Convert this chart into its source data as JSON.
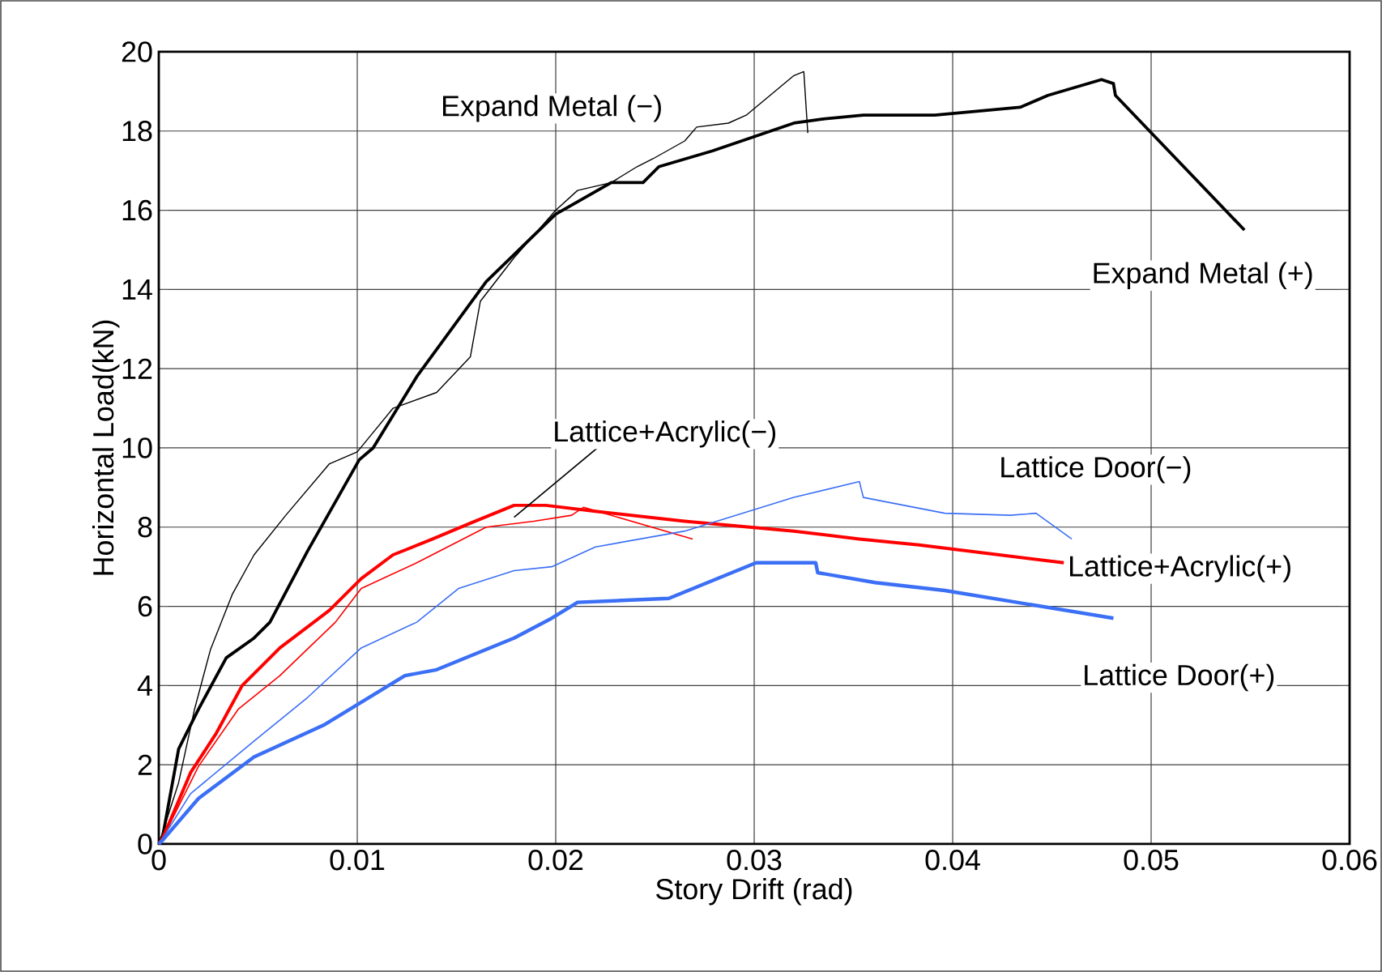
{
  "chart_data": {
    "type": "line",
    "xlabel": "Story Drift (rad)",
    "ylabel": "Horizontal Load(kN)",
    "xlim": [
      0,
      0.06
    ],
    "xticks": [
      0,
      0.01,
      0.02,
      0.03,
      0.04,
      0.05,
      0.06
    ],
    "ylim": [
      0,
      20
    ],
    "yticks": [
      0,
      2,
      4,
      6,
      8,
      10,
      12,
      14,
      16,
      18,
      20
    ],
    "grid": true,
    "marker": "none",
    "line_style": "solid",
    "series": [
      {
        "name": "Expand Metal (+)",
        "color": "#000000",
        "x": [
          0,
          0.0002,
          0.001,
          0.002,
          0.0034,
          0.0048,
          0.0056,
          0.0075,
          0.0101,
          0.0108,
          0.013,
          0.0165,
          0.02,
          0.0228,
          0.0244,
          0.0252,
          0.0279,
          0.032,
          0.0334,
          0.0355,
          0.0391,
          0.0434,
          0.0448,
          0.0475,
          0.0481,
          0.0482,
          0.0547
        ],
        "values": [
          0,
          0.2,
          2.4,
          3.4,
          4.7,
          5.2,
          5.6,
          7.4,
          9.7,
          10.0,
          11.8,
          14.2,
          15.9,
          16.7,
          16.7,
          17.1,
          17.5,
          18.2,
          18.3,
          18.4,
          18.4,
          18.6,
          18.9,
          19.3,
          19.2,
          18.9,
          15.5
        ]
      },
      {
        "name": "Expand Metal (−)",
        "color": "#000000",
        "x": [
          0,
          0.0002,
          0.001,
          0.0018,
          0.0026,
          0.0037,
          0.0048,
          0.0064,
          0.0086,
          0.01,
          0.0118,
          0.014,
          0.0157,
          0.0162,
          0.0179,
          0.02,
          0.0211,
          0.0228,
          0.0241,
          0.0249,
          0.0265,
          0.0271,
          0.0287,
          0.0296,
          0.032,
          0.0325,
          0.0327
        ],
        "values": [
          0,
          0.3,
          1.55,
          3.4,
          4.9,
          6.3,
          7.3,
          8.3,
          9.6,
          9.9,
          11.0,
          11.4,
          12.3,
          13.7,
          14.8,
          16.0,
          16.5,
          16.7,
          17.1,
          17.3,
          17.75,
          18.1,
          18.2,
          18.4,
          19.4,
          19.5,
          17.95
        ]
      },
      {
        "name": "Lattice+Acrylic(+)",
        "color": "#ff0000",
        "x": [
          0,
          0.0002,
          0.0016,
          0.0029,
          0.0042,
          0.0061,
          0.0086,
          0.0102,
          0.0118,
          0.0138,
          0.0157,
          0.0179,
          0.0195,
          0.022,
          0.0265,
          0.032,
          0.0353,
          0.0383,
          0.0456
        ],
        "values": [
          0,
          0.15,
          1.8,
          2.8,
          4.0,
          4.95,
          5.9,
          6.7,
          7.3,
          7.7,
          8.1,
          8.55,
          8.55,
          8.4,
          8.15,
          7.9,
          7.7,
          7.55,
          7.1
        ]
      },
      {
        "name": "Lattice+Acrylic(−)",
        "color": "#ff0000",
        "x": [
          0,
          0.0002,
          0.002,
          0.004,
          0.0061,
          0.0089,
          0.0102,
          0.013,
          0.0165,
          0.0189,
          0.0208,
          0.0214,
          0.0269
        ],
        "values": [
          0,
          0.15,
          1.96,
          3.4,
          4.25,
          5.6,
          6.45,
          7.1,
          8.0,
          8.15,
          8.3,
          8.5,
          7.7
        ]
      },
      {
        "name": "Lattice Door(+)",
        "color": "#3b6ff5",
        "x": [
          0,
          0.0002,
          0.002,
          0.0048,
          0.0083,
          0.0124,
          0.014,
          0.0179,
          0.0198,
          0.0211,
          0.0257,
          0.0301,
          0.0331,
          0.0332,
          0.0361,
          0.0396,
          0.0481
        ],
        "values": [
          0,
          0.1,
          1.15,
          2.2,
          3.0,
          4.25,
          4.4,
          5.2,
          5.7,
          6.1,
          6.2,
          7.1,
          7.1,
          6.85,
          6.6,
          6.4,
          5.7
        ]
      },
      {
        "name": "Lattice Door(−)",
        "color": "#3b6ff5",
        "x": [
          0,
          0.0002,
          0.0016,
          0.0048,
          0.0075,
          0.0102,
          0.013,
          0.0151,
          0.0179,
          0.0198,
          0.022,
          0.0265,
          0.032,
          0.0353,
          0.0355,
          0.0396,
          0.0429,
          0.0442,
          0.046
        ],
        "values": [
          0,
          0.15,
          1.27,
          2.6,
          3.7,
          4.95,
          5.6,
          6.45,
          6.9,
          7.0,
          7.5,
          7.9,
          8.75,
          9.15,
          8.75,
          8.35,
          8.3,
          8.35,
          7.7
        ]
      }
    ]
  }
}
